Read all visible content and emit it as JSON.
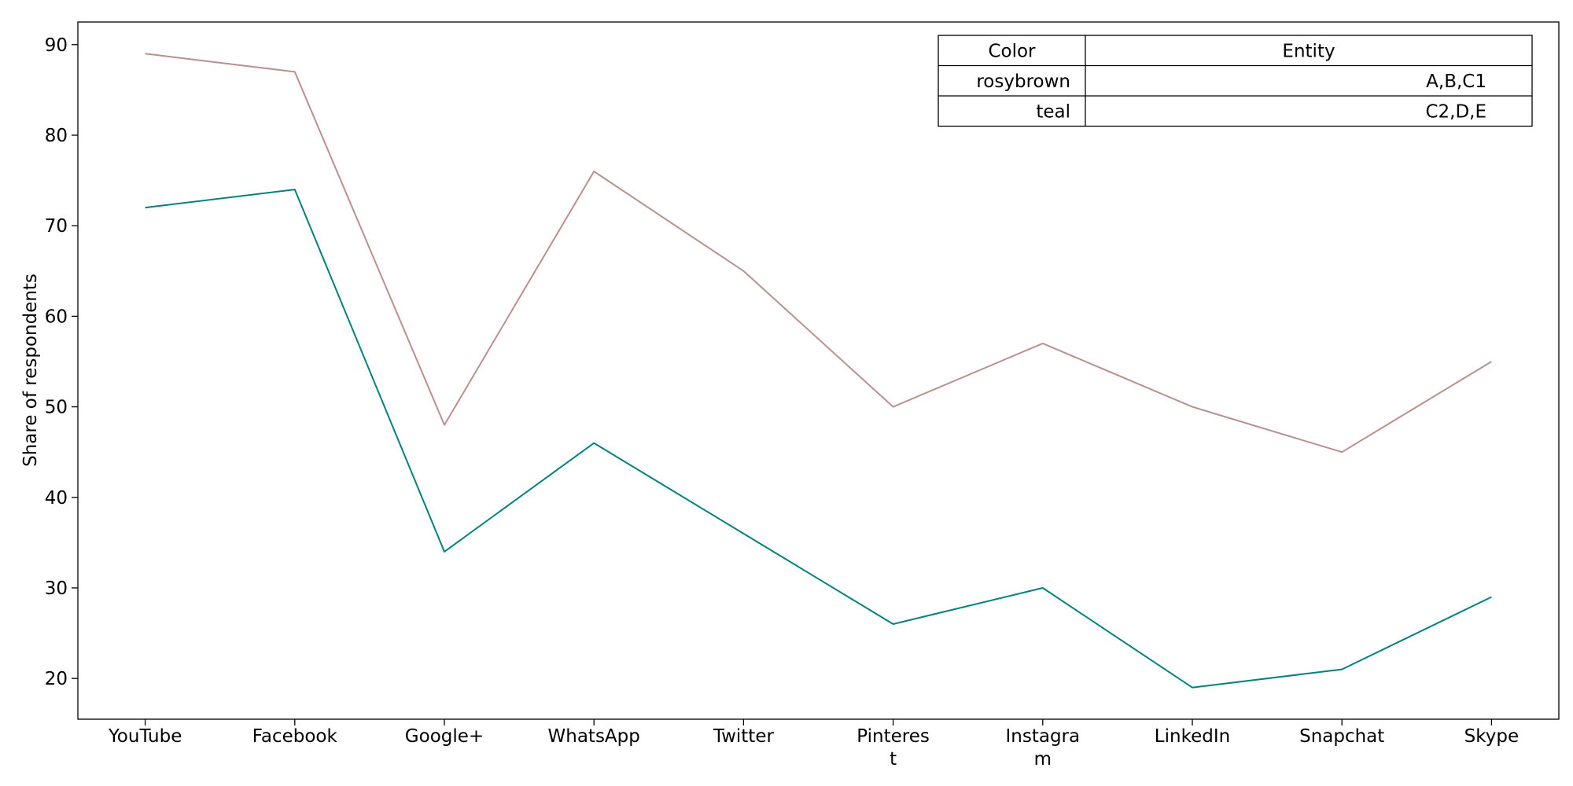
{
  "chart_data": {
    "type": "line",
    "categories": [
      "YouTube",
      "Facebook",
      "Google+",
      "WhatsApp",
      "Twitter",
      "Pinterest",
      "Instagram",
      "LinkedIn",
      "Snapchat",
      "Skype"
    ],
    "category_lines": [
      [
        "YouTube"
      ],
      [
        "Facebook"
      ],
      [
        "Google+"
      ],
      [
        "WhatsApp"
      ],
      [
        "Twitter"
      ],
      [
        "Pinteres",
        "t"
      ],
      [
        "Instagra",
        "m"
      ],
      [
        "LinkedIn"
      ],
      [
        "Snapchat"
      ],
      [
        "Skype"
      ]
    ],
    "series": [
      {
        "color": "#bc8f8f",
        "values": [
          89,
          87,
          48,
          76,
          65,
          50,
          57,
          50,
          45,
          55
        ]
      },
      {
        "color": "#008080",
        "values": [
          72,
          74,
          34,
          46,
          36,
          26,
          30,
          19,
          21,
          29
        ]
      }
    ],
    "xlabel": "",
    "ylabel": "Share of respondents",
    "ylim": [
      15.5,
      92.5
    ],
    "yticks": [
      20,
      30,
      40,
      50,
      60,
      70,
      80,
      90
    ],
    "grid": false,
    "legend_table": {
      "placement": "top-right",
      "headers": [
        "Color",
        "Entity"
      ],
      "rows": [
        [
          "rosybrown",
          "A,B,C1"
        ],
        [
          "teal",
          "C2,D,E"
        ]
      ]
    }
  }
}
